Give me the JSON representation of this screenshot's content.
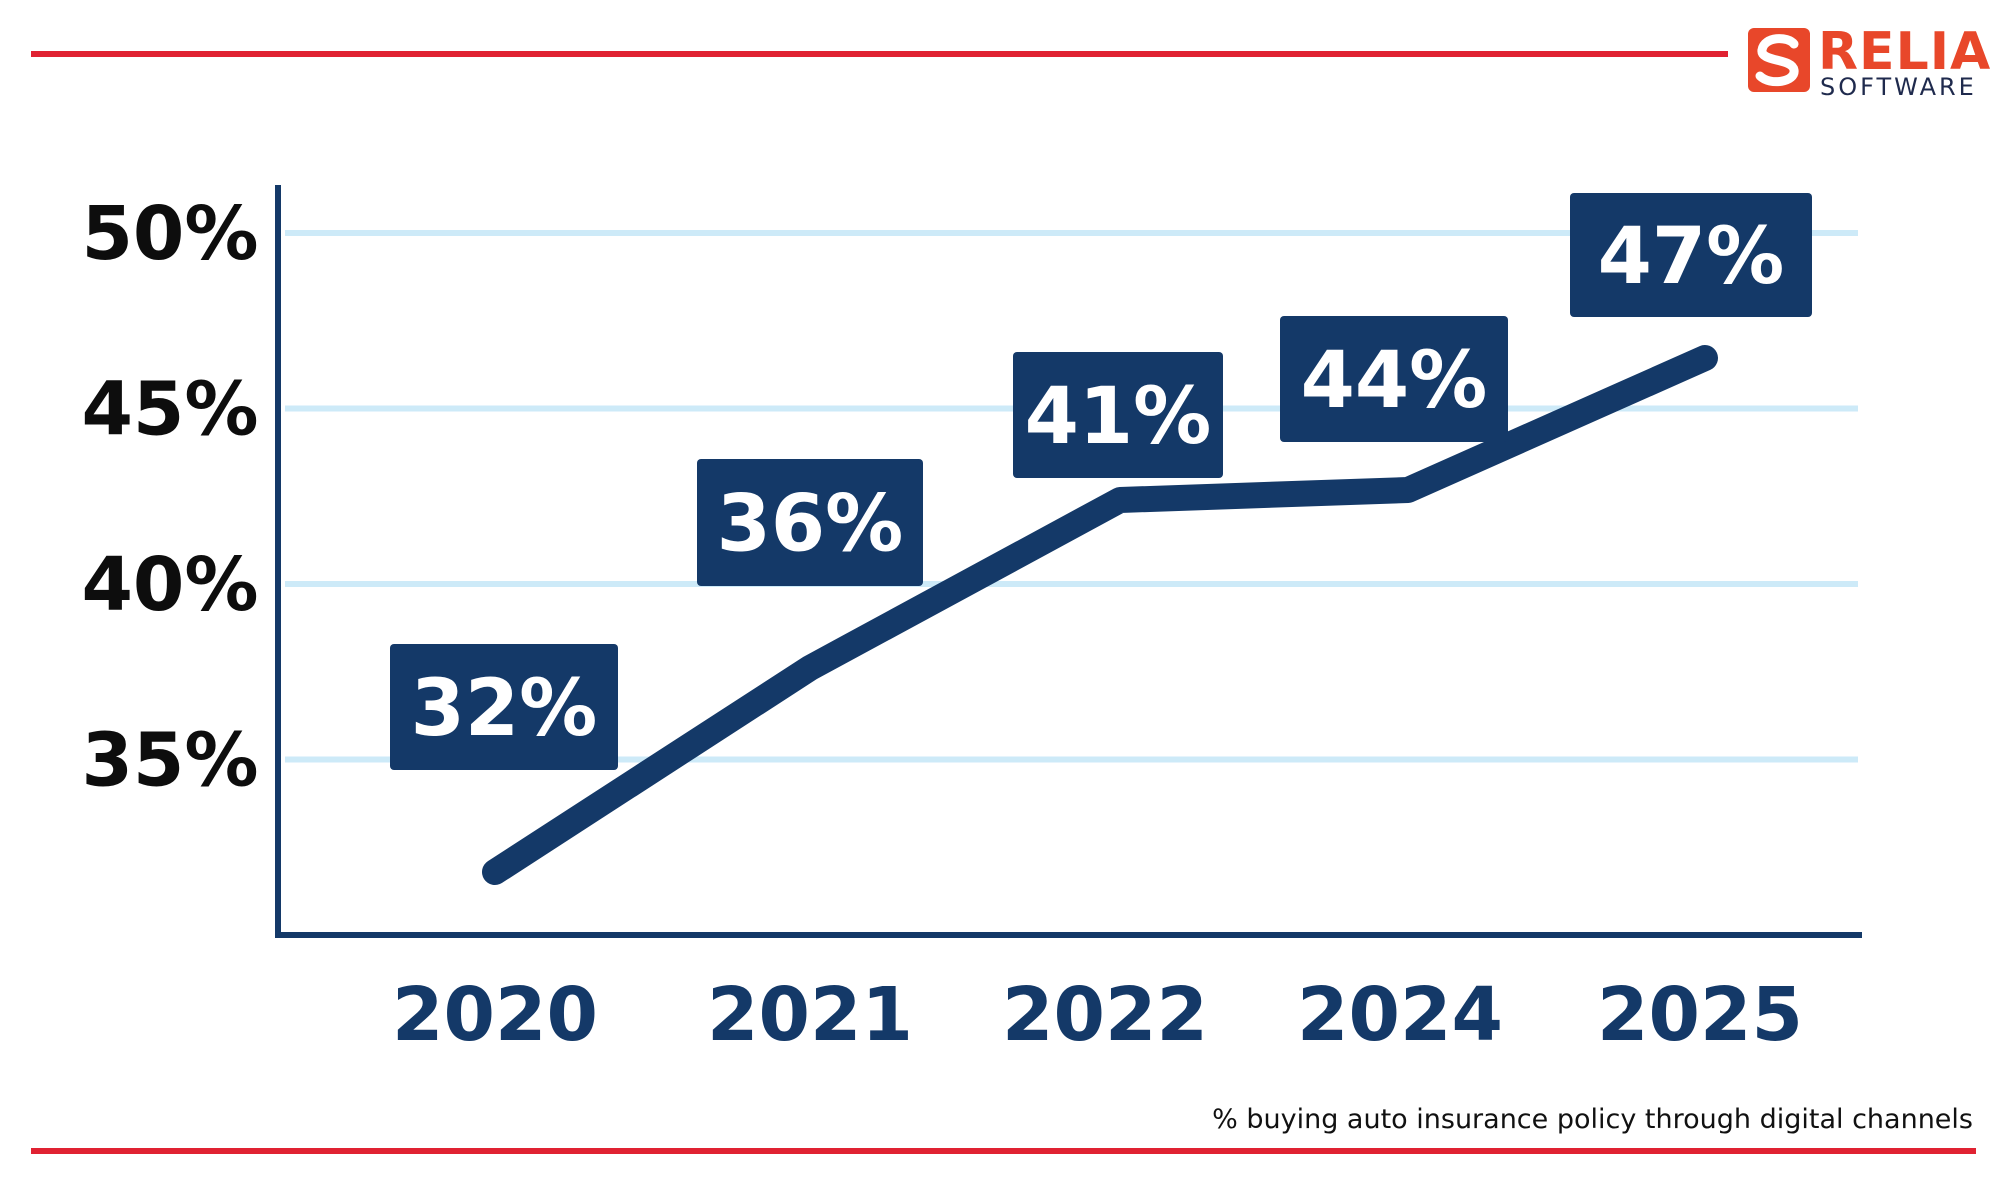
{
  "logo": {
    "name": "RELIA",
    "tagline": "SOFTWARE",
    "color": "#e8472a"
  },
  "colors": {
    "accent_rule": "#e02232",
    "line": "#143968",
    "label_box": "#143968",
    "grid": "#cdeaf8"
  },
  "caption": "% buying auto insurance policy through digital channels",
  "chart_data": {
    "type": "line",
    "categories": [
      "2020",
      "2021",
      "2022",
      "2024",
      "2025"
    ],
    "values": [
      32,
      36,
      41,
      44,
      47
    ],
    "data_labels": [
      "32%",
      "36%",
      "41%",
      "44%",
      "47%"
    ],
    "y_ticks": [
      35,
      40,
      45,
      50
    ],
    "y_tick_labels": [
      "35%",
      "40%",
      "45%",
      "50%"
    ],
    "ylim": [
      30,
      50
    ],
    "grid": "horizontal",
    "title": "",
    "xlabel": "",
    "ylabel": ""
  }
}
